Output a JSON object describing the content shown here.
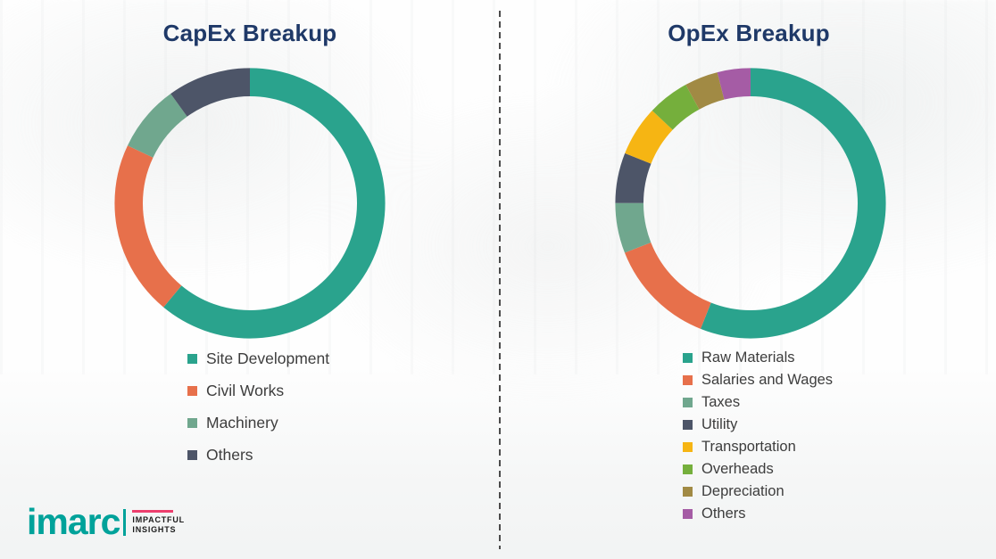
{
  "logo": {
    "brand": "imarc",
    "tagline_line1": "IMPACTFUL",
    "tagline_line2": "INSIGHTS",
    "brand_color": "#00a29a",
    "accent_color": "#ed3e6d"
  },
  "chart_data": [
    {
      "type": "pie",
      "variant": "donut",
      "title": "CapEx Breakup",
      "title_color": "#1f3968",
      "legend_position": "below-left",
      "start_angle_deg": 0,
      "direction": "clockwise",
      "segments": [
        {
          "label": "Site Development",
          "value": 61,
          "color": "#2aa38d"
        },
        {
          "label": "Civil Works",
          "value": 21,
          "color": "#e7704b"
        },
        {
          "label": "Machinery",
          "value": 8,
          "color": "#70a78e"
        },
        {
          "label": "Others",
          "value": 10,
          "color": "#4d5568"
        }
      ]
    },
    {
      "type": "pie",
      "variant": "donut",
      "title": "OpEx Breakup",
      "title_color": "#1f3968",
      "legend_position": "below-left",
      "start_angle_deg": 0,
      "direction": "clockwise",
      "segments": [
        {
          "label": "Raw Materials",
          "value": 56,
          "color": "#2aa38d"
        },
        {
          "label": "Salaries and Wages",
          "value": 13,
          "color": "#e7704b"
        },
        {
          "label": "Taxes",
          "value": 6,
          "color": "#70a78e"
        },
        {
          "label": "Utility",
          "value": 6,
          "color": "#4d5568"
        },
        {
          "label": "Transportation",
          "value": 6,
          "color": "#f6b513"
        },
        {
          "label": "Overheads",
          "value": 5,
          "color": "#75af3c"
        },
        {
          "label": "Depreciation",
          "value": 4,
          "color": "#a18a44"
        },
        {
          "label": "Others",
          "value": 4,
          "color": "#a55ca5"
        }
      ]
    }
  ]
}
